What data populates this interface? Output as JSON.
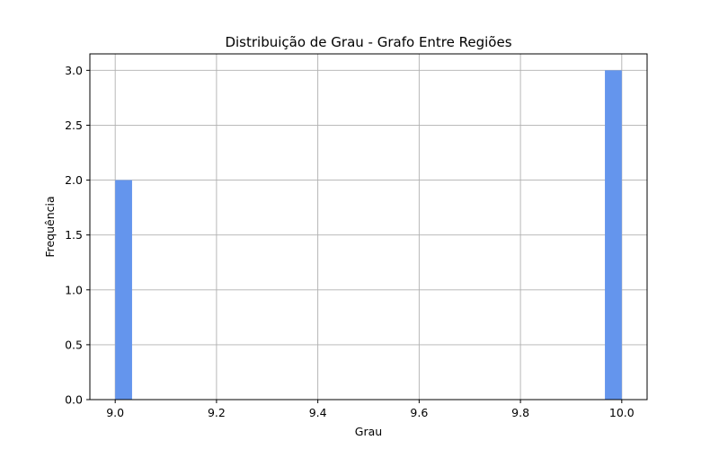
{
  "chart_data": {
    "type": "bar",
    "title": "Distribuição de Grau - Grafo Entre Regiões",
    "xlabel": "Grau",
    "ylabel": "Frequência",
    "xlim": [
      8.95,
      10.05
    ],
    "ylim": [
      0,
      3.15
    ],
    "xticks": [
      "9.0",
      "9.2",
      "9.4",
      "9.6",
      "9.8",
      "10.0"
    ],
    "xtick_values": [
      9.0,
      9.2,
      9.4,
      9.6,
      9.8,
      10.0
    ],
    "yticks": [
      "0.0",
      "0.5",
      "1.0",
      "1.5",
      "2.0",
      "2.5",
      "3.0"
    ],
    "ytick_values": [
      0.0,
      0.5,
      1.0,
      1.5,
      2.0,
      2.5,
      3.0
    ],
    "grid": true,
    "bar_color": "#6495ED",
    "bins": [
      {
        "start": 9.0,
        "end": 9.0333,
        "count": 2
      },
      {
        "start": 9.9667,
        "end": 10.0,
        "count": 3
      }
    ]
  }
}
